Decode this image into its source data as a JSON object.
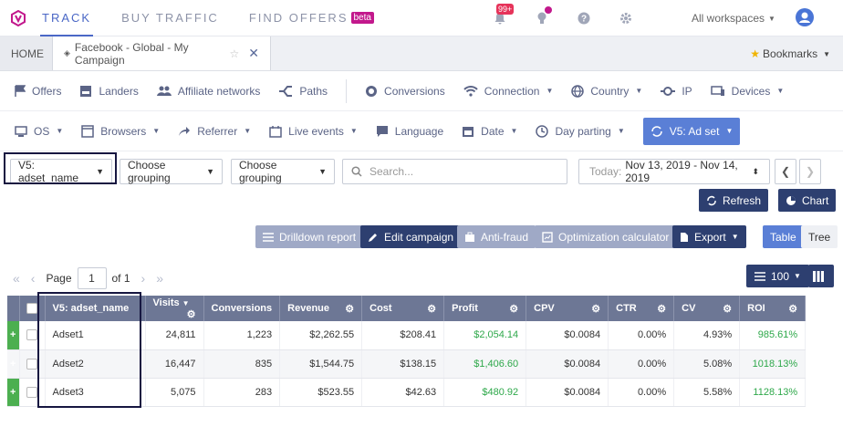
{
  "topnav": {
    "links": [
      "TRACK",
      "BUY TRAFFIC",
      "FIND OFFERS"
    ],
    "beta": "beta",
    "notif_badge": "99+",
    "workspaces": "All workspaces"
  },
  "tabs": {
    "home": "HOME",
    "campaign": "Facebook - Global - My Campaign",
    "bookmarks": "Bookmarks"
  },
  "reports_row1": [
    "Offers",
    "Landers",
    "Affiliate networks",
    "Paths",
    "Conversions",
    "Connection",
    "Country",
    "IP",
    "Devices"
  ],
  "reports_row2": [
    "OS",
    "Browsers",
    "Referrer",
    "Live events",
    "Language",
    "Date",
    "Day parting",
    "V5: Ad set"
  ],
  "controls": {
    "group1": "V5: adset_name",
    "group2": "Choose grouping",
    "group3": "Choose grouping",
    "search_placeholder": "Search...",
    "date_label": "Today:",
    "date_range": "Nov 13, 2019 - Nov 14, 2019"
  },
  "buttons": {
    "refresh": "Refresh",
    "chart": "Chart",
    "drilldown": "Drilldown report",
    "edit": "Edit campaign",
    "antifraud": "Anti-fraud",
    "optcalc": "Optimization calculator",
    "export": "Export",
    "table": "Table",
    "tree": "Tree",
    "rows": "100"
  },
  "pager": {
    "label": "Page",
    "page": "1",
    "of": "of 1"
  },
  "table": {
    "headers": [
      "V5: adset_name",
      "Visits",
      "Conversions",
      "Revenue",
      "Cost",
      "Profit",
      "CPV",
      "CTR",
      "CV",
      "ROI"
    ],
    "rows": [
      [
        "Adset1",
        "24,811",
        "1,223",
        "$2,262.55",
        "$208.41",
        "$2,054.14",
        "$0.0084",
        "0.00%",
        "4.93%",
        "985.61%"
      ],
      [
        "Adset2",
        "16,447",
        "835",
        "$1,544.75",
        "$138.15",
        "$1,406.60",
        "$0.0084",
        "0.00%",
        "5.08%",
        "1018.13%"
      ],
      [
        "Adset3",
        "5,075",
        "283",
        "$523.55",
        "$42.63",
        "$480.92",
        "$0.0084",
        "0.00%",
        "5.58%",
        "1128.13%"
      ]
    ]
  },
  "colors": {
    "accent": "#4a67c6",
    "dark_button": "#2d3f70",
    "header": "#6d7795",
    "positive": "#2ea84a",
    "highlight": "#161640"
  }
}
